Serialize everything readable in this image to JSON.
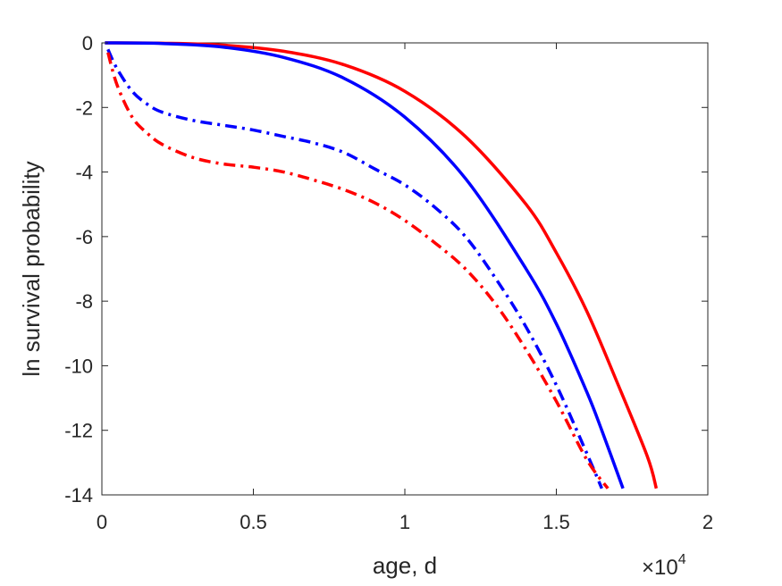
{
  "chart_data": {
    "type": "line",
    "title": "",
    "xlabel": "age, d",
    "ylabel": "ln survival probability",
    "x_exponent_base": "×10",
    "x_exponent_power": "4",
    "xlim": [
      0,
      2
    ],
    "ylim": [
      -14,
      0
    ],
    "grid": false,
    "xticks": [
      0,
      0.5,
      1,
      1.5,
      2
    ],
    "xtick_labels": [
      "0",
      "0.5",
      "1",
      "1.5",
      "2"
    ],
    "yticks": [
      0,
      -2,
      -4,
      -6,
      -8,
      -10,
      -12,
      -14
    ],
    "ytick_labels": [
      "0",
      "-2",
      "-4",
      "-6",
      "-8",
      "-10",
      "-12",
      "-14"
    ],
    "series": [
      {
        "color": "#ff0000",
        "style": "solid",
        "x": [
          0.01,
          0.2,
          0.4,
          0.6,
          0.8,
          1.0,
          1.2,
          1.4,
          1.5,
          1.6,
          1.7,
          1.8,
          1.83
        ],
        "y": [
          0,
          -0.01,
          -0.07,
          -0.26,
          -0.68,
          -1.5,
          -2.9,
          -5.0,
          -6.5,
          -8.3,
          -10.5,
          -12.8,
          -13.8
        ]
      },
      {
        "color": "#0000ff",
        "style": "solid",
        "x": [
          0.01,
          0.2,
          0.4,
          0.6,
          0.8,
          1.0,
          1.2,
          1.4,
          1.5,
          1.6,
          1.65,
          1.72
        ],
        "y": [
          0,
          -0.02,
          -0.13,
          -0.45,
          -1.1,
          -2.3,
          -4.2,
          -7.0,
          -8.7,
          -10.8,
          -12.0,
          -13.8
        ]
      },
      {
        "color": "#0000ff",
        "style": "dashdot",
        "x": [
          0.02,
          0.05,
          0.1,
          0.15,
          0.2,
          0.3,
          0.4,
          0.5,
          0.6,
          0.7,
          0.8,
          0.9,
          1.0,
          1.1,
          1.2,
          1.3,
          1.4,
          1.5,
          1.6,
          1.65
        ],
        "y": [
          -0.2,
          -0.8,
          -1.5,
          -1.9,
          -2.15,
          -2.4,
          -2.55,
          -2.7,
          -2.9,
          -3.1,
          -3.4,
          -3.9,
          -4.4,
          -5.1,
          -6.0,
          -7.3,
          -8.8,
          -10.6,
          -12.7,
          -13.8
        ]
      },
      {
        "color": "#ff0000",
        "style": "dashdot",
        "x": [
          0.02,
          0.05,
          0.1,
          0.15,
          0.2,
          0.3,
          0.4,
          0.5,
          0.6,
          0.7,
          0.8,
          0.9,
          1.0,
          1.1,
          1.2,
          1.3,
          1.4,
          1.5,
          1.6,
          1.67
        ],
        "y": [
          -0.3,
          -1.3,
          -2.3,
          -2.8,
          -3.15,
          -3.55,
          -3.75,
          -3.85,
          -4.0,
          -4.25,
          -4.55,
          -4.95,
          -5.5,
          -6.2,
          -7.0,
          -8.1,
          -9.5,
          -11.1,
          -12.9,
          -13.8
        ]
      }
    ]
  }
}
